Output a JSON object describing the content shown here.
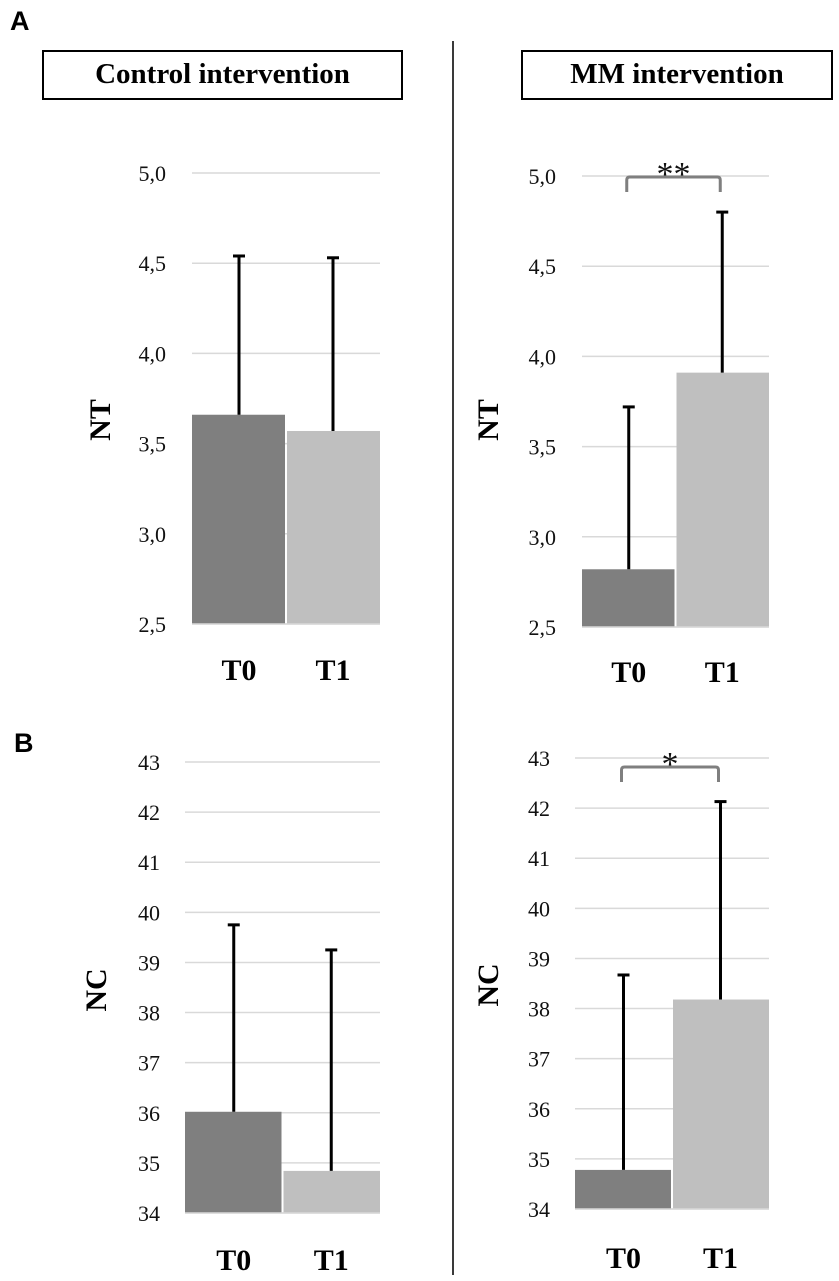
{
  "panels": {
    "A": {
      "letter": "A"
    },
    "B": {
      "letter": "B"
    }
  },
  "titles": {
    "left": "Control intervention",
    "right": "MM intervention"
  },
  "colors": {
    "t0_bar": "#7f7f7f",
    "t1_bar": "#bfbfbf",
    "error_bar": "#000000",
    "gridline": "#d9d9d9",
    "bracket": "#7f7f7f"
  },
  "chart_data": [
    {
      "id": "A-control",
      "type": "bar",
      "panel": "A",
      "title": "Control intervention",
      "ylabel": "NT",
      "xlabel": "",
      "categories": [
        "T0",
        "T1"
      ],
      "values": [
        3.66,
        3.57
      ],
      "error_upper": [
        4.54,
        4.53
      ],
      "ylim": [
        2.5,
        5.0
      ],
      "yticks": [
        "2,5",
        "3,0",
        "3,5",
        "4,0",
        "4,5",
        "5,0"
      ],
      "ytick_values": [
        2.5,
        3.0,
        3.5,
        4.0,
        4.5,
        5.0
      ],
      "grid": true,
      "significance": null
    },
    {
      "id": "A-mm",
      "type": "bar",
      "panel": "A",
      "title": "MM intervention",
      "ylabel": "NT",
      "xlabel": "",
      "categories": [
        "T0",
        "T1"
      ],
      "values": [
        2.82,
        3.91
      ],
      "error_upper": [
        3.72,
        4.8
      ],
      "ylim": [
        2.5,
        5.0
      ],
      "yticks": [
        "2,5",
        "3,0",
        "3,5",
        "4,0",
        "4,5",
        "5,0"
      ],
      "ytick_values": [
        2.5,
        3.0,
        3.5,
        4.0,
        4.5,
        5.0
      ],
      "grid": true,
      "significance": "**"
    },
    {
      "id": "B-control",
      "type": "bar",
      "panel": "B",
      "title": "Control intervention",
      "ylabel": "NC",
      "xlabel": "",
      "categories": [
        "T0",
        "T1"
      ],
      "values": [
        36.02,
        34.84
      ],
      "error_upper": [
        39.75,
        39.25
      ],
      "ylim": [
        34,
        43
      ],
      "yticks": [
        "34",
        "35",
        "36",
        "37",
        "38",
        "39",
        "40",
        "41",
        "42",
        "43"
      ],
      "ytick_values": [
        34,
        35,
        36,
        37,
        38,
        39,
        40,
        41,
        42,
        43
      ],
      "grid": true,
      "significance": null
    },
    {
      "id": "B-mm",
      "type": "bar",
      "panel": "B",
      "title": "MM intervention",
      "ylabel": "NC",
      "xlabel": "",
      "categories": [
        "T0",
        "T1"
      ],
      "values": [
        34.78,
        38.18
      ],
      "error_upper": [
        38.67,
        42.13
      ],
      "ylim": [
        34,
        43
      ],
      "yticks": [
        "34",
        "35",
        "36",
        "37",
        "38",
        "39",
        "40",
        "41",
        "42",
        "43"
      ],
      "ytick_values": [
        34,
        35,
        36,
        37,
        38,
        39,
        40,
        41,
        42,
        43
      ],
      "grid": true,
      "significance": "*"
    }
  ]
}
